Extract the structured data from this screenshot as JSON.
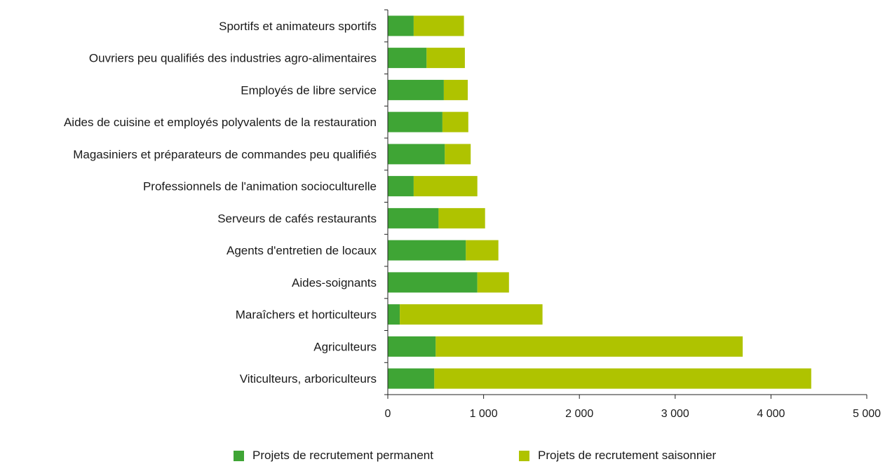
{
  "chart_data": {
    "type": "bar",
    "orientation": "horizontal",
    "stacked": true,
    "categories": [
      "Sportifs et animateurs sportifs",
      "Ouvriers peu qualifiés des industries agro-alimentaires",
      "Employés de libre service",
      "Aides de cuisine et employés polyvalents de la restauration",
      "Magasiniers et préparateurs de commandes peu qualifiés",
      "Professionnels de l'animation socioculturelle",
      "Serveurs de cafés restaurants",
      "Agents d'entretien de locaux",
      "Aides-soignants",
      "Maraîchers et horticulteurs",
      "Agriculteurs",
      "Viticulteurs, arboriculteurs"
    ],
    "series": [
      {
        "name": "Projets de recrutement permanent",
        "color": "#3fa535",
        "values": [
          270,
          405,
          585,
          570,
          595,
          270,
          530,
          815,
          935,
          125,
          500,
          485
        ]
      },
      {
        "name": "Projets de recrutement saisonnier",
        "color": "#afc300",
        "values": [
          525,
          400,
          250,
          270,
          270,
          665,
          485,
          340,
          330,
          1490,
          3205,
          3935
        ]
      }
    ],
    "xlim": [
      0,
      5000
    ],
    "xticks": [
      0,
      1000,
      2000,
      3000,
      4000,
      5000
    ],
    "xtick_labels": [
      "0",
      "1 000",
      "2 000",
      "3 000",
      "4 000",
      "5 000"
    ],
    "grid": false,
    "legend_position": "bottom"
  }
}
